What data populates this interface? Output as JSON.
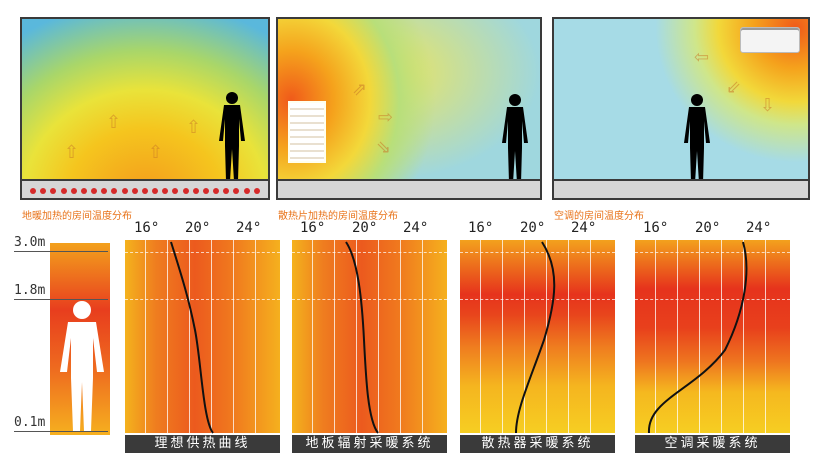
{
  "rooms": [
    {
      "caption": "地暖加热的房间温度分布"
    },
    {
      "caption": "散热片加热的房间温度分布"
    },
    {
      "caption": "空调的房间温度分布"
    }
  ],
  "height_axis": {
    "labels": [
      "3.0m",
      "1.8m",
      "0.1m"
    ]
  },
  "temperature_ticks": [
    "16°",
    "20°",
    "24°"
  ],
  "systems": [
    {
      "label": "理想供热曲线"
    },
    {
      "label": "地板辐射采暖系统"
    },
    {
      "label": "散热器采暖系统"
    },
    {
      "label": "空调采暖系统"
    }
  ],
  "colors": {
    "orange": "#f07a1e",
    "red": "#e23a1c",
    "yellow": "#f6d21f",
    "caption": "#e8731a"
  }
}
